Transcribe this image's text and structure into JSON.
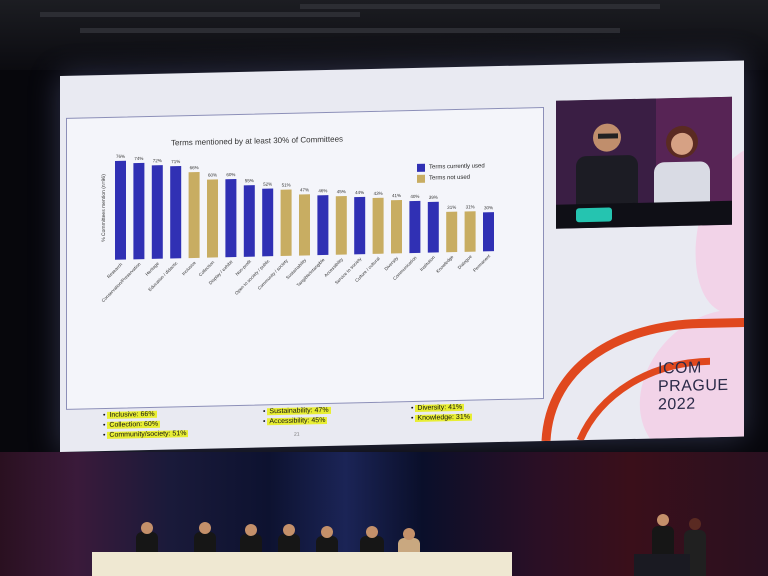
{
  "slide": {
    "chart_data": {
      "type": "bar",
      "title": "Terms mentioned by at least 30% of Committees",
      "ylabel": "% Committees mention (n=96)",
      "ylim": [
        0,
        80
      ],
      "grid": false,
      "legend_placement": "top-right",
      "series": [
        {
          "name": "Terms currently used",
          "color": "#3030b4"
        },
        {
          "name": "Terms not used",
          "color": "#c8ad62"
        }
      ],
      "bars": [
        {
          "category": "Research",
          "value": 76,
          "label": "76%",
          "series": 0
        },
        {
          "category": "Conservation/Preservation",
          "value": 74,
          "label": "74%",
          "series": 0
        },
        {
          "category": "Heritage",
          "value": 72,
          "label": "72%",
          "series": 0
        },
        {
          "category": "Education / didactic",
          "value": 71,
          "label": "71%",
          "series": 0
        },
        {
          "category": "Inclusive",
          "value": 66,
          "label": "66%",
          "series": 1
        },
        {
          "category": "Collection",
          "value": 60,
          "label": "60%",
          "series": 1
        },
        {
          "category": "Display / exhibit",
          "value": 60,
          "label": "60%",
          "series": 0
        },
        {
          "category": "Non-profit",
          "value": 55,
          "label": "55%",
          "series": 0
        },
        {
          "category": "Open to society / public",
          "value": 52,
          "label": "52%",
          "series": 0
        },
        {
          "category": "Community / society",
          "value": 51,
          "label": "51%",
          "series": 1
        },
        {
          "category": "Sustainability",
          "value": 47,
          "label": "47%",
          "series": 1
        },
        {
          "category": "Tangible/intangible",
          "value": 46,
          "label": "46%",
          "series": 0
        },
        {
          "category": "Accessibility",
          "value": 45,
          "label": "45%",
          "series": 1
        },
        {
          "category": "Service to society",
          "value": 44,
          "label": "44%",
          "series": 0
        },
        {
          "category": "Culture / cultural",
          "value": 43,
          "label": "43%",
          "series": 1
        },
        {
          "category": "Diversity",
          "value": 41,
          "label": "41%",
          "series": 1
        },
        {
          "category": "Communication",
          "value": 40,
          "label": "40%",
          "series": 0
        },
        {
          "category": "Institution",
          "value": 39,
          "label": "39%",
          "series": 0
        },
        {
          "category": "Knowledge",
          "value": 31,
          "label": "31%",
          "series": 1
        },
        {
          "category": "Dialogue",
          "value": 31,
          "label": "31%",
          "series": 1
        },
        {
          "category": "Permanent",
          "value": 30,
          "label": "30%",
          "series": 0
        }
      ]
    },
    "bullets": {
      "col1": [
        "Inclusive: 66%",
        "Collection: 60%",
        "Community/society: 51%"
      ],
      "col2": [
        "Sustainability: 47%",
        "Accessibility: 45%"
      ],
      "col3": [
        "Diversity: 41%",
        "Knowledge: 31%"
      ]
    },
    "page_number": "21",
    "highlight_color": "#e8ee33",
    "accent_color": "#e0481e"
  },
  "branding": {
    "line1": "ICOM",
    "line2": "PRAGUE",
    "line3": "2022"
  }
}
